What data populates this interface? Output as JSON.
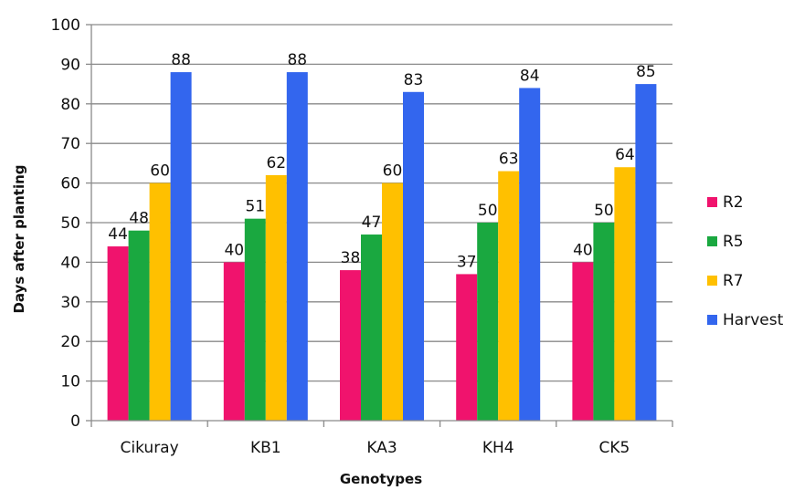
{
  "chart_data": {
    "type": "bar",
    "title": "",
    "xlabel": "Genotypes",
    "ylabel": "Days after planting",
    "categories": [
      "Cikuray",
      "KB1",
      "KA3",
      "KH4",
      "CK5"
    ],
    "ylim": [
      0,
      100
    ],
    "ytick_step": 10,
    "grid": true,
    "legend_position": "right",
    "series": [
      {
        "name": "R2",
        "color": "#f0136d",
        "values": [
          44,
          40,
          38,
          37,
          40
        ]
      },
      {
        "name": "R5",
        "color": "#1aa840",
        "values": [
          48,
          51,
          47,
          50,
          50
        ]
      },
      {
        "name": "R7",
        "color": "#ffc000",
        "values": [
          60,
          62,
          60,
          63,
          64
        ]
      },
      {
        "name": "Harvest",
        "color": "#3366ee",
        "values": [
          88,
          88,
          83,
          84,
          85
        ]
      }
    ]
  }
}
